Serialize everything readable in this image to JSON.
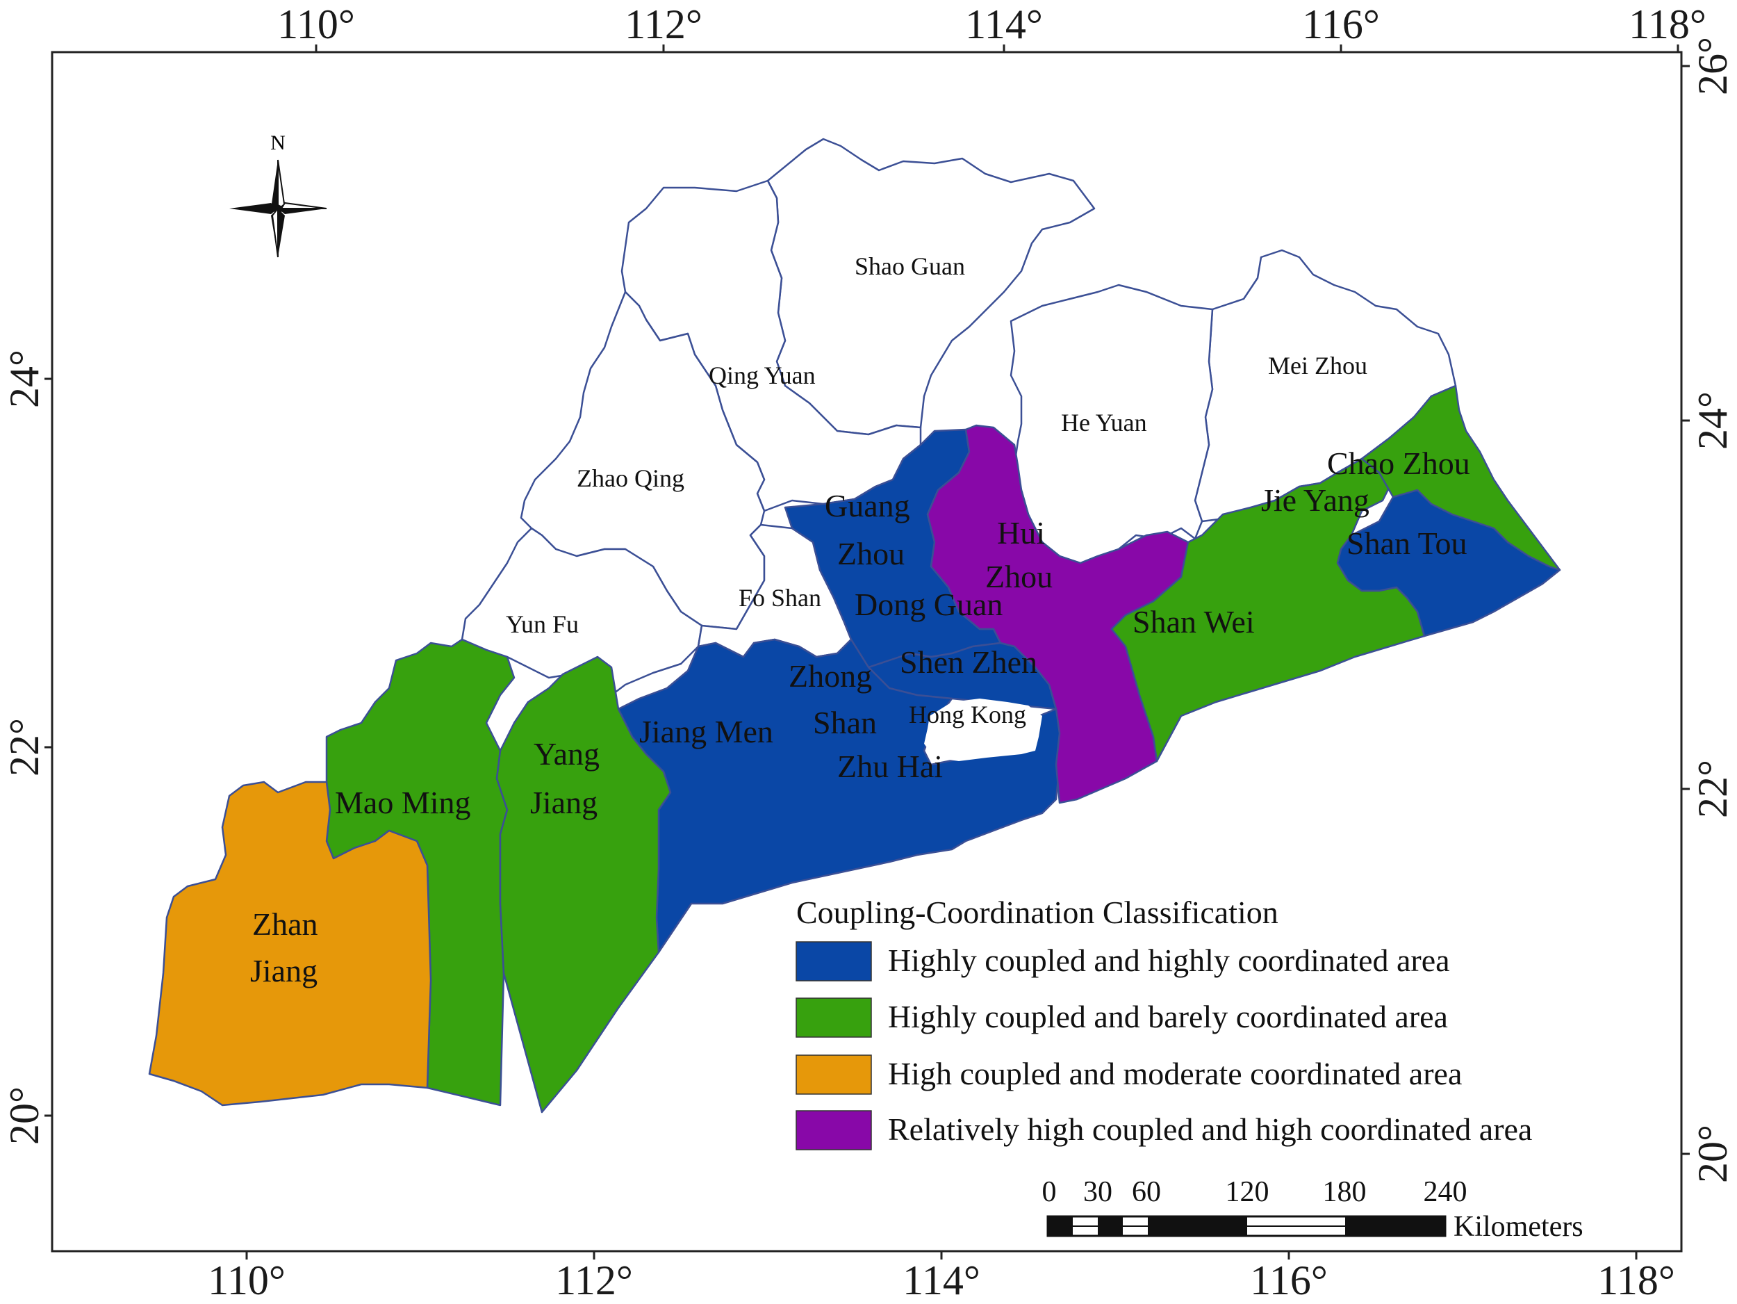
{
  "map": {
    "top_lon_labels": [
      "110°",
      "112°",
      "114°",
      "116°",
      "118°"
    ],
    "bottom_lon_labels": [
      "110°",
      "112°",
      "114°",
      "116°",
      "118°"
    ],
    "left_lat_labels": [
      "24°",
      "22°",
      "20°"
    ],
    "right_lat_labels": [
      "26°",
      "24°",
      "22°",
      "20°"
    ],
    "north_label": "N",
    "cities": {
      "shao_guan": "Shao Guan",
      "qing_yuan": "Qing Yuan",
      "mei_zhou": "Mei Zhou",
      "he_yuan": "He Yuan",
      "zhao_qing": "Zhao Qing",
      "yun_fu": "Yun Fu",
      "fo_shan": "Fo Shan",
      "guang": "Guang",
      "zhou_gz": "Zhou",
      "hui": "Hui",
      "zhou_hz": "Zhou",
      "dong_guan": "Dong Guan",
      "shen_zhen": "Shen Zhen",
      "zhong": "Zhong",
      "shan_zs": "Shan",
      "hong_kong": "Hong Kong",
      "zhu_hai": "Zhu Hai",
      "jiang_men": "Jiang Men",
      "chao_zhou": "Chao Zhou",
      "jie_yang": "Jie Yang",
      "shan_tou": "Shan Tou",
      "shan_wei": "Shan Wei",
      "yang": "Yang",
      "jiang_yj": "Jiang",
      "mao_ming": "Mao Ming",
      "zhan": "Zhan",
      "jiang_zj": "Jiang"
    }
  },
  "legend": {
    "title": "Coupling-Coordination Classification",
    "items": [
      {
        "label": "Highly coupled and highly coordinated area",
        "color": "#0a47a6"
      },
      {
        "label": "Highly coupled and barely coordinated area",
        "color": "#37a10e"
      },
      {
        "label": "High coupled and moderate coordinated area",
        "color": "#e6980a"
      },
      {
        "label": "Relatively high coupled and high coordinated area",
        "color": "#8808a8"
      }
    ]
  },
  "scale_bar": {
    "ticks": [
      "0",
      "30",
      "60",
      "120",
      "180",
      "240"
    ],
    "unit": "Kilometers"
  },
  "colors": {
    "highly_coordinated": "#0a47a6",
    "barely_coordinated": "#37a10e",
    "moderate_coordinated": "#e6980a",
    "relatively_high": "#8808a8",
    "boundary": "#3b4f95"
  }
}
